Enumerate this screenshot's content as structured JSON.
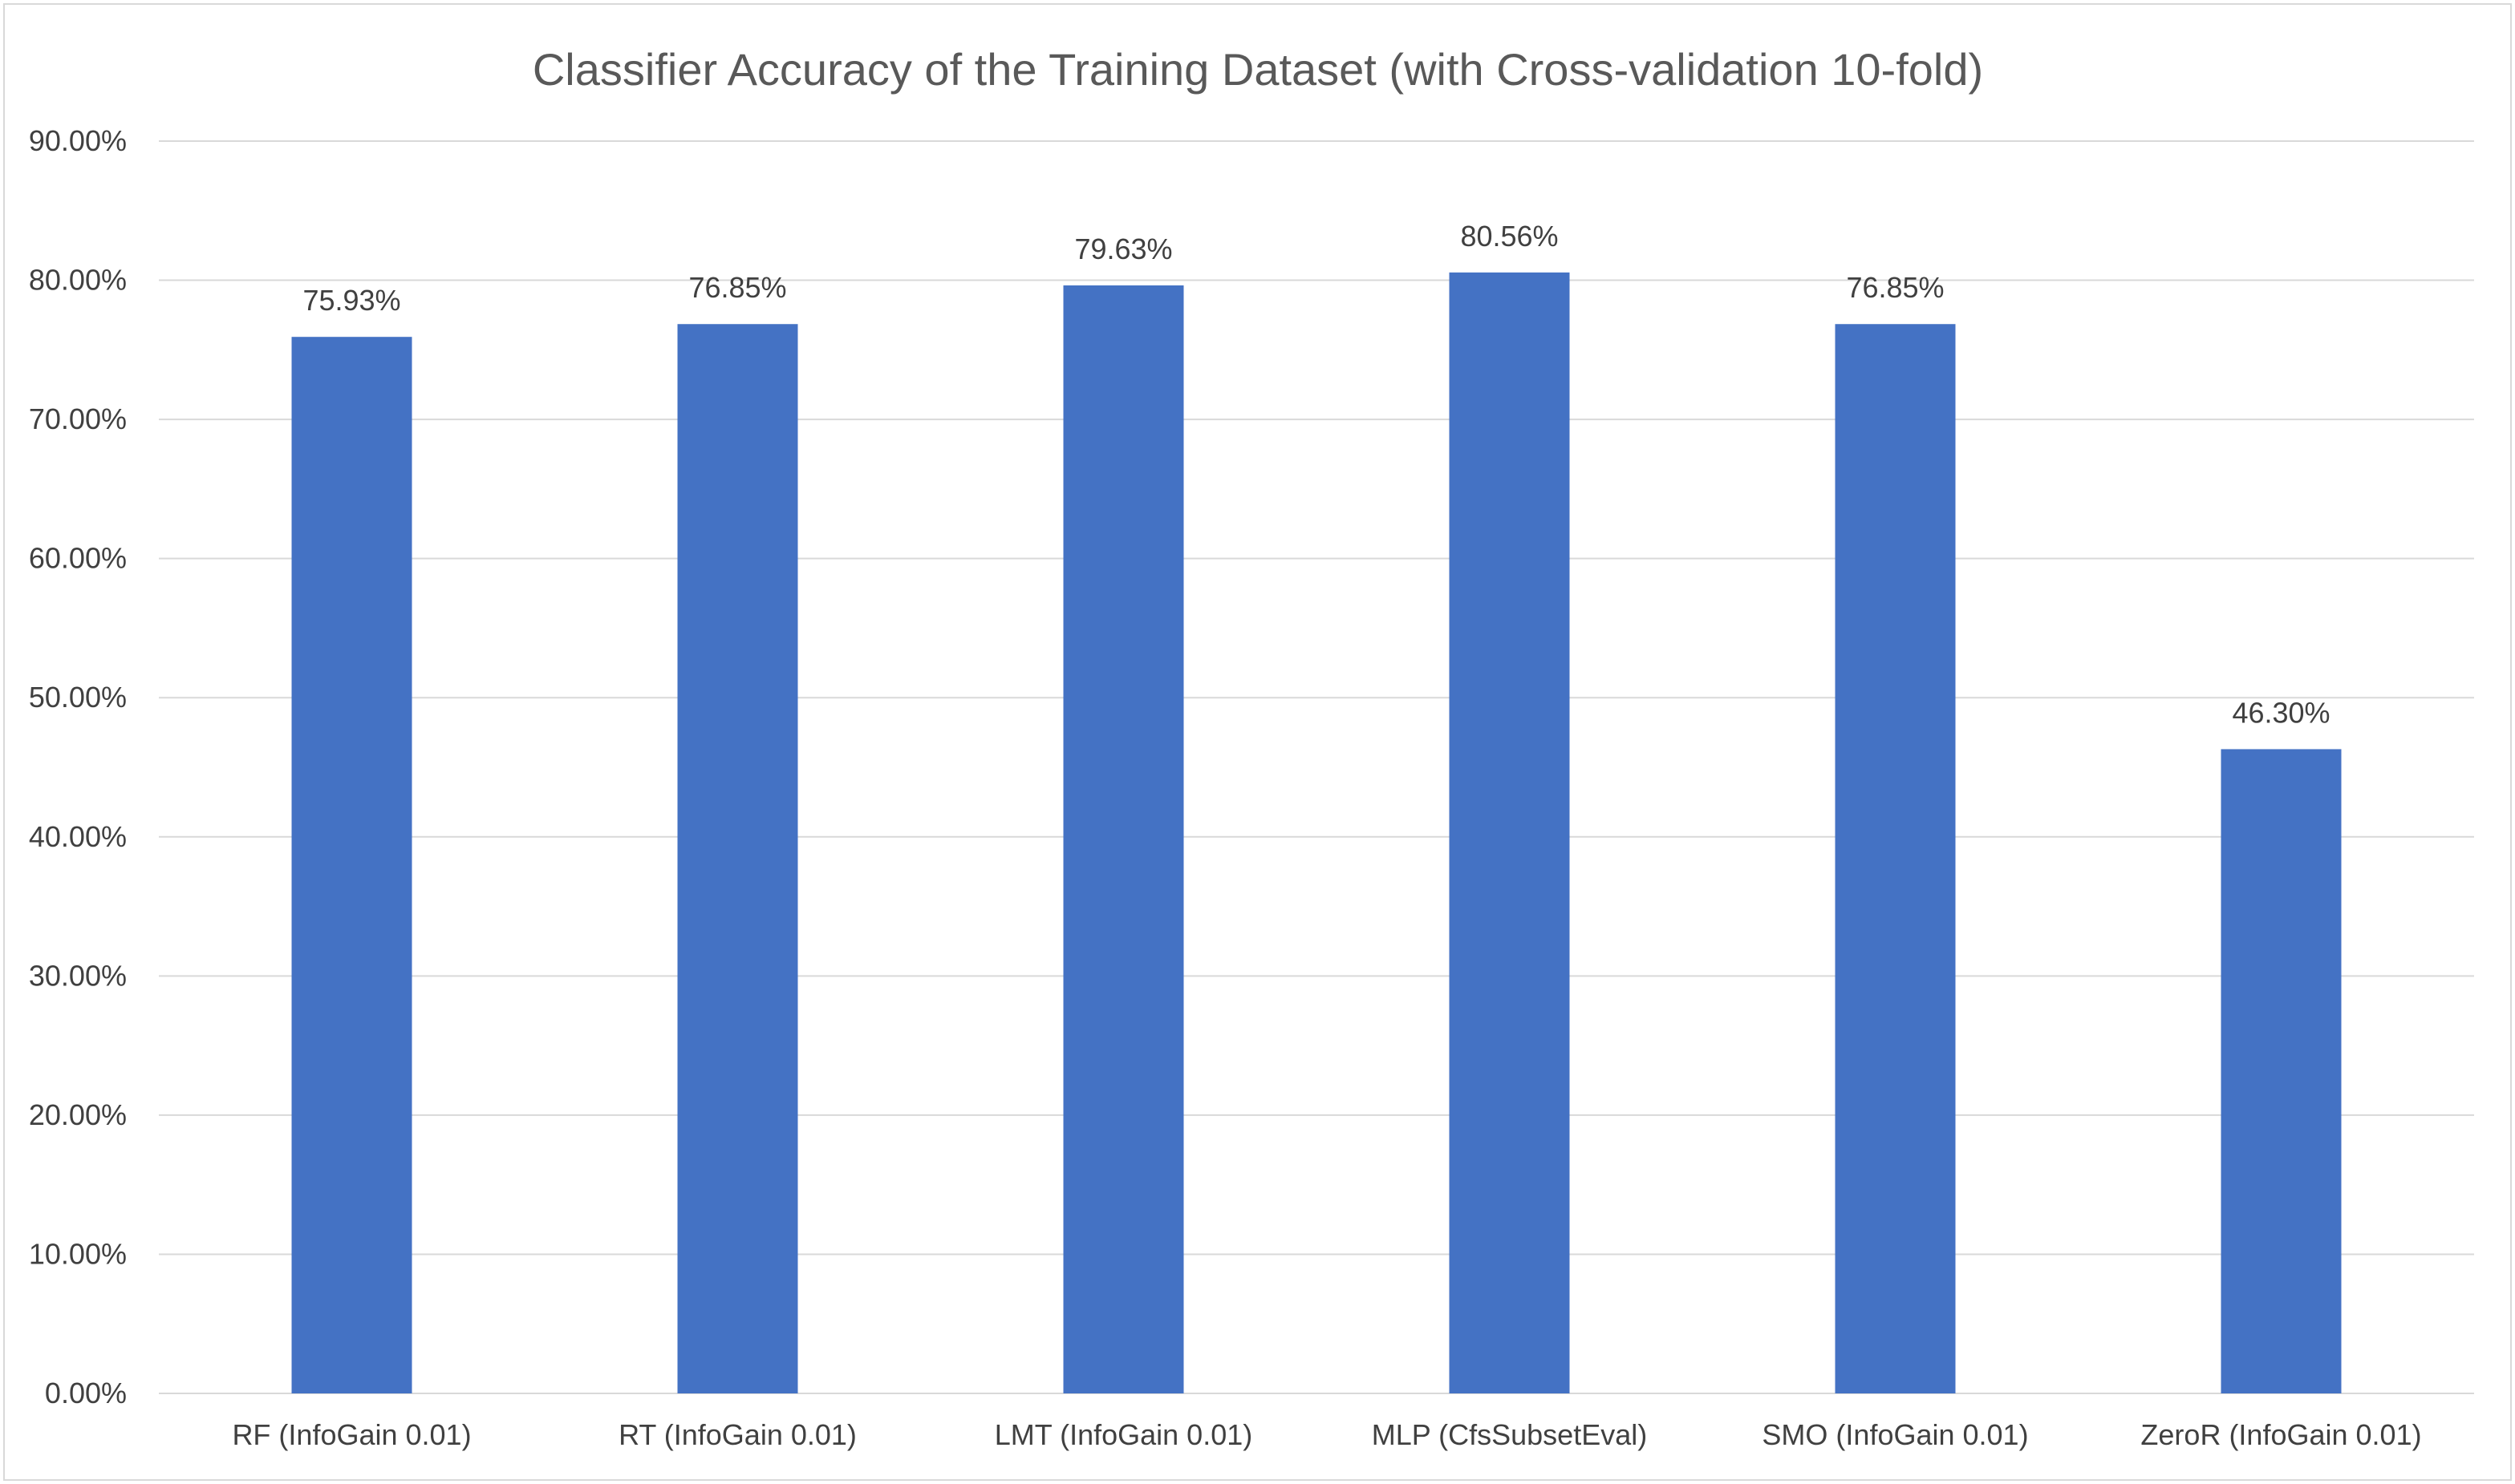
{
  "chart_data": {
    "type": "bar",
    "title": "Classifier Accuracy of the Training Dataset (with Cross-validation 10-fold)",
    "xlabel": "",
    "ylabel": "",
    "categories": [
      "RF (InfoGain 0.01)",
      "RT (InfoGain 0.01)",
      "LMT (InfoGain 0.01)",
      "MLP (CfsSubsetEval)",
      "SMO (InfoGain 0.01)",
      "ZeroR (InfoGain 0.01)"
    ],
    "values": [
      75.93,
      76.85,
      79.63,
      80.56,
      76.85,
      46.3
    ],
    "data_labels": [
      "75.93%",
      "76.85%",
      "79.63%",
      "80.56%",
      "76.85%",
      "46.30%"
    ],
    "ylim": [
      0,
      90
    ],
    "y_ticks": [
      0,
      10,
      20,
      30,
      40,
      50,
      60,
      70,
      80,
      90
    ],
    "y_tick_labels": [
      "0.00%",
      "10.00%",
      "20.00%",
      "30.00%",
      "40.00%",
      "50.00%",
      "60.00%",
      "70.00%",
      "80.00%",
      "90.00%"
    ],
    "grid": true,
    "legend": "none",
    "bar_color": "#4472c4",
    "grid_color": "#d9d9d9",
    "title_color": "#595959",
    "text_color": "#404040"
  }
}
